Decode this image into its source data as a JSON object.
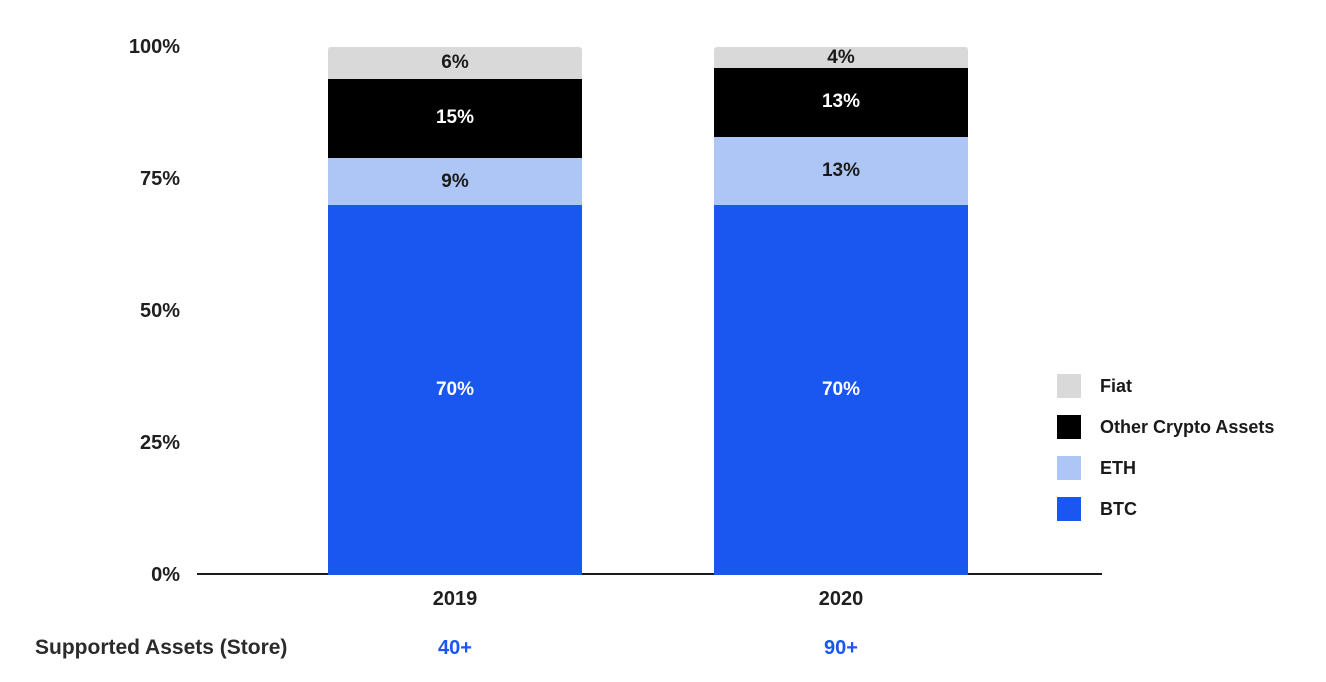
{
  "chart_data": {
    "type": "bar",
    "subtype": "stacked-column",
    "title": "",
    "categories": [
      "2019",
      "2020"
    ],
    "series": [
      {
        "name": "Fiat",
        "color": "#d9d9d9",
        "text_color": "#1a1a1a",
        "values": [
          6,
          4
        ]
      },
      {
        "name": "Other Crypto Assets",
        "color": "#000000",
        "text_color": "#ffffff",
        "values": [
          15,
          13
        ]
      },
      {
        "name": "ETH",
        "color": "#aec6f5",
        "text_color": "#1a1a1a",
        "values": [
          9,
          13
        ]
      },
      {
        "name": "BTC",
        "color": "#1a56f0",
        "text_color": "#ffffff",
        "values": [
          70,
          70
        ]
      }
    ],
    "segment_label_suffix": "%",
    "y_axis": {
      "ticks": [
        {
          "label": "0%",
          "value": 0
        },
        {
          "label": "25%",
          "value": 25
        },
        {
          "label": "50%",
          "value": 50
        },
        {
          "label": "75%",
          "value": 75
        },
        {
          "label": "100%",
          "value": 100
        }
      ],
      "range": [
        0,
        100
      ],
      "gridlines": false
    },
    "legend": {
      "position": "right",
      "items": [
        "Fiat",
        "Other Crypto Assets",
        "ETH",
        "BTC"
      ]
    },
    "axis_color": "#1a1a1a"
  },
  "footer": {
    "label": "Supported Assets (Store)",
    "values": [
      "40+",
      "90+"
    ],
    "value_color": "#1a56f0"
  },
  "colors": {
    "background": "#ffffff",
    "text": "#1f1f1f",
    "accent_blue": "#1a56f0"
  }
}
